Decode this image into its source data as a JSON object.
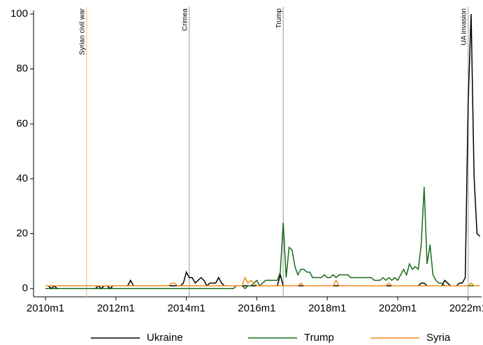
{
  "chart_data": {
    "type": "line",
    "x": [
      "2010m1",
      "2010m2",
      "2010m3",
      "2010m4",
      "2010m5",
      "2010m6",
      "2010m7",
      "2010m8",
      "2010m9",
      "2010m10",
      "2010m11",
      "2010m12",
      "2011m1",
      "2011m2",
      "2011m3",
      "2011m4",
      "2011m5",
      "2011m6",
      "2011m7",
      "2011m8",
      "2011m9",
      "2011m10",
      "2011m11",
      "2011m12",
      "2012m1",
      "2012m2",
      "2012m3",
      "2012m4",
      "2012m5",
      "2012m6",
      "2012m7",
      "2012m8",
      "2012m9",
      "2012m10",
      "2012m11",
      "2012m12",
      "2013m1",
      "2013m2",
      "2013m3",
      "2013m4",
      "2013m5",
      "2013m6",
      "2013m7",
      "2013m8",
      "2013m9",
      "2013m10",
      "2013m11",
      "2013m12",
      "2014m1",
      "2014m2",
      "2014m3",
      "2014m4",
      "2014m5",
      "2014m6",
      "2014m7",
      "2014m8",
      "2014m9",
      "2014m10",
      "2014m11",
      "2014m12",
      "2015m1",
      "2015m2",
      "2015m3",
      "2015m4",
      "2015m5",
      "2015m6",
      "2015m7",
      "2015m8",
      "2015m9",
      "2015m10",
      "2015m11",
      "2015m12",
      "2016m1",
      "2016m2",
      "2016m3",
      "2016m4",
      "2016m5",
      "2016m6",
      "2016m7",
      "2016m8",
      "2016m9",
      "2016m10",
      "2016m11",
      "2016m12",
      "2017m1",
      "2017m2",
      "2017m3",
      "2017m4",
      "2017m5",
      "2017m6",
      "2017m7",
      "2017m8",
      "2017m9",
      "2017m10",
      "2017m11",
      "2017m12",
      "2018m1",
      "2018m2",
      "2018m3",
      "2018m4",
      "2018m5",
      "2018m6",
      "2018m7",
      "2018m8",
      "2018m9",
      "2018m10",
      "2018m11",
      "2018m12",
      "2019m1",
      "2019m2",
      "2019m3",
      "2019m4",
      "2019m5",
      "2019m6",
      "2019m7",
      "2019m8",
      "2019m9",
      "2019m10",
      "2019m11",
      "2019m12",
      "2020m1",
      "2020m2",
      "2020m3",
      "2020m4",
      "2020m5",
      "2020m6",
      "2020m7",
      "2020m8",
      "2020m9",
      "2020m10",
      "2020m11",
      "2020m12",
      "2021m1",
      "2021m2",
      "2021m3",
      "2021m4",
      "2021m5",
      "2021m6",
      "2021m7",
      "2021m8",
      "2021m9",
      "2021m10",
      "2021m11",
      "2021m12",
      "2022m1",
      "2022m2",
      "2022m3",
      "2022m4",
      "2022m5"
    ],
    "series": [
      {
        "name": "Ukraine",
        "color": "#000000",
        "values": [
          1,
          1,
          0,
          1,
          0,
          0,
          0,
          0,
          0,
          0,
          0,
          0,
          0,
          0,
          0,
          0,
          0,
          0,
          1,
          0,
          1,
          1,
          0,
          1,
          1,
          1,
          1,
          1,
          1,
          3,
          1,
          1,
          1,
          1,
          1,
          1,
          1,
          1,
          1,
          1,
          1,
          1,
          1,
          1,
          1,
          1,
          1,
          2,
          6,
          4,
          4,
          2,
          3,
          4,
          3,
          1,
          2,
          2,
          2,
          4,
          2,
          1,
          1,
          1,
          1,
          1,
          1,
          1,
          1,
          1,
          1,
          1,
          1,
          1,
          1,
          1,
          1,
          1,
          1,
          1,
          5,
          1,
          1,
          1,
          1,
          1,
          1,
          1,
          1,
          1,
          1,
          1,
          1,
          1,
          1,
          1,
          1,
          1,
          1,
          1,
          1,
          1,
          1,
          1,
          1,
          1,
          1,
          1,
          1,
          1,
          1,
          1,
          1,
          1,
          1,
          1,
          1,
          1,
          1,
          1,
          1,
          1,
          1,
          1,
          1,
          1,
          1,
          1,
          2,
          2,
          1,
          1,
          1,
          1,
          1,
          1,
          3,
          2,
          1,
          1,
          1,
          2,
          2,
          4,
          68,
          100,
          41,
          20,
          19
        ]
      },
      {
        "name": "Trump",
        "color": "#1a6b1a",
        "values": [
          0,
          0,
          0,
          0,
          0,
          0,
          0,
          0,
          0,
          0,
          0,
          0,
          0,
          0,
          0,
          0,
          0,
          0,
          0,
          0,
          0,
          0,
          0,
          0,
          0,
          0,
          0,
          0,
          0,
          0,
          0,
          0,
          0,
          0,
          0,
          0,
          0,
          0,
          0,
          0,
          0,
          0,
          0,
          0,
          0,
          0,
          0,
          0,
          0,
          0,
          0,
          0,
          0,
          0,
          0,
          0,
          0,
          0,
          0,
          0,
          0,
          0,
          0,
          0,
          0,
          1,
          1,
          1,
          0,
          1,
          1,
          2,
          3,
          1,
          2,
          3,
          3,
          3,
          3,
          3,
          6,
          24,
          4,
          15,
          14,
          8,
          5,
          7,
          7,
          6,
          6,
          4,
          4,
          4,
          4,
          5,
          4,
          4,
          5,
          4,
          5,
          5,
          5,
          5,
          4,
          4,
          4,
          4,
          4,
          4,
          4,
          4,
          3,
          3,
          3,
          4,
          3,
          4,
          3,
          4,
          3,
          5,
          7,
          5,
          9,
          7,
          8,
          7,
          16,
          37,
          9,
          16,
          5,
          3,
          2,
          2,
          1,
          1,
          1,
          1,
          1,
          1,
          1,
          1,
          1,
          1,
          1,
          1,
          1
        ]
      },
      {
        "name": "Syria",
        "color": "#f28c1e",
        "values": [
          1,
          1,
          1,
          1,
          1,
          1,
          1,
          1,
          1,
          1,
          1,
          1,
          1,
          1,
          1,
          1,
          1,
          1,
          1,
          1,
          1,
          1,
          1,
          1,
          1,
          1,
          1,
          1,
          1,
          1,
          1,
          1,
          1,
          1,
          1,
          1,
          1,
          1,
          1,
          1,
          1,
          1,
          1,
          2,
          2,
          1,
          1,
          1,
          1,
          1,
          1,
          1,
          1,
          1,
          1,
          1,
          1,
          1,
          1,
          1,
          1,
          1,
          1,
          1,
          1,
          1,
          1,
          1,
          4,
          2,
          3,
          2,
          1,
          1,
          1,
          1,
          1,
          1,
          1,
          1,
          1,
          1,
          1,
          1,
          1,
          1,
          1,
          2,
          1,
          1,
          1,
          1,
          1,
          1,
          1,
          1,
          1,
          1,
          1,
          3,
          1,
          1,
          1,
          1,
          1,
          1,
          1,
          1,
          1,
          1,
          1,
          1,
          1,
          1,
          1,
          1,
          1,
          2,
          1,
          1,
          1,
          1,
          1,
          1,
          1,
          1,
          1,
          1,
          1,
          1,
          1,
          1,
          1,
          1,
          1,
          1,
          1,
          1,
          1,
          1,
          1,
          1,
          1,
          1,
          1,
          2,
          1,
          1,
          1
        ]
      }
    ],
    "xticks": [
      "2010m1",
      "2012m1",
      "2014m1",
      "2016m1",
      "2018m1",
      "2020m1",
      "2022m1"
    ],
    "ylim": [
      -3,
      100
    ],
    "yticks": [
      0,
      20,
      40,
      60,
      80,
      100
    ],
    "annotations": [
      {
        "text": "Syrian civil war",
        "x": "2011m3",
        "color": "#f8c9a0"
      },
      {
        "text": "Crimea",
        "x": "2014m2",
        "color": "#b0b0b0"
      },
      {
        "text": "Trump",
        "x": "2016m10",
        "color": "#b0b0b0"
      },
      {
        "text": "UA invasion",
        "x": "2022m1",
        "color": "#b0b0b0"
      }
    ],
    "legend": "bottom"
  }
}
